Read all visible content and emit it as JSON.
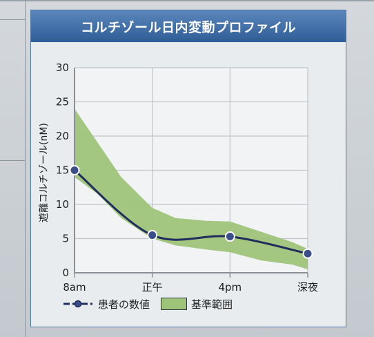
{
  "chart_data": {
    "type": "line",
    "title": "コルチゾール日内変動プロファイル",
    "xlabel": "",
    "ylabel": "遊離コルチゾール(nM)",
    "categories": [
      "8am",
      "正午",
      "4pm",
      "深夜"
    ],
    "ylim": [
      0,
      30
    ],
    "yticks": [
      "0",
      "5",
      "10",
      "15",
      "20",
      "25",
      "30"
    ],
    "series": [
      {
        "name": "患者の数値",
        "x": [
          0,
          1,
          2,
          3
        ],
        "values": [
          15,
          5.5,
          5.3,
          2.8
        ]
      }
    ],
    "band": {
      "name": "基準範囲",
      "x": [
        0,
        0.3,
        0.6,
        1,
        1.3,
        1.7,
        2,
        2.4,
        2.8,
        3
      ],
      "upper": [
        24,
        19,
        14,
        9.5,
        8,
        7.6,
        7.5,
        6,
        4.5,
        3.5
      ],
      "lower": [
        14,
        11.5,
        8,
        5,
        4,
        3.4,
        3,
        1.8,
        1.2,
        0.5
      ]
    },
    "grid": true,
    "legend_position": "bottom",
    "colors": {
      "line": "#1f2d5c",
      "marker_fill": "#3a4f8a",
      "band": "#9ec47a",
      "header": "#3a6aa5"
    }
  },
  "legend": {
    "patient": "患者の数値",
    "reference": "基準範囲"
  }
}
